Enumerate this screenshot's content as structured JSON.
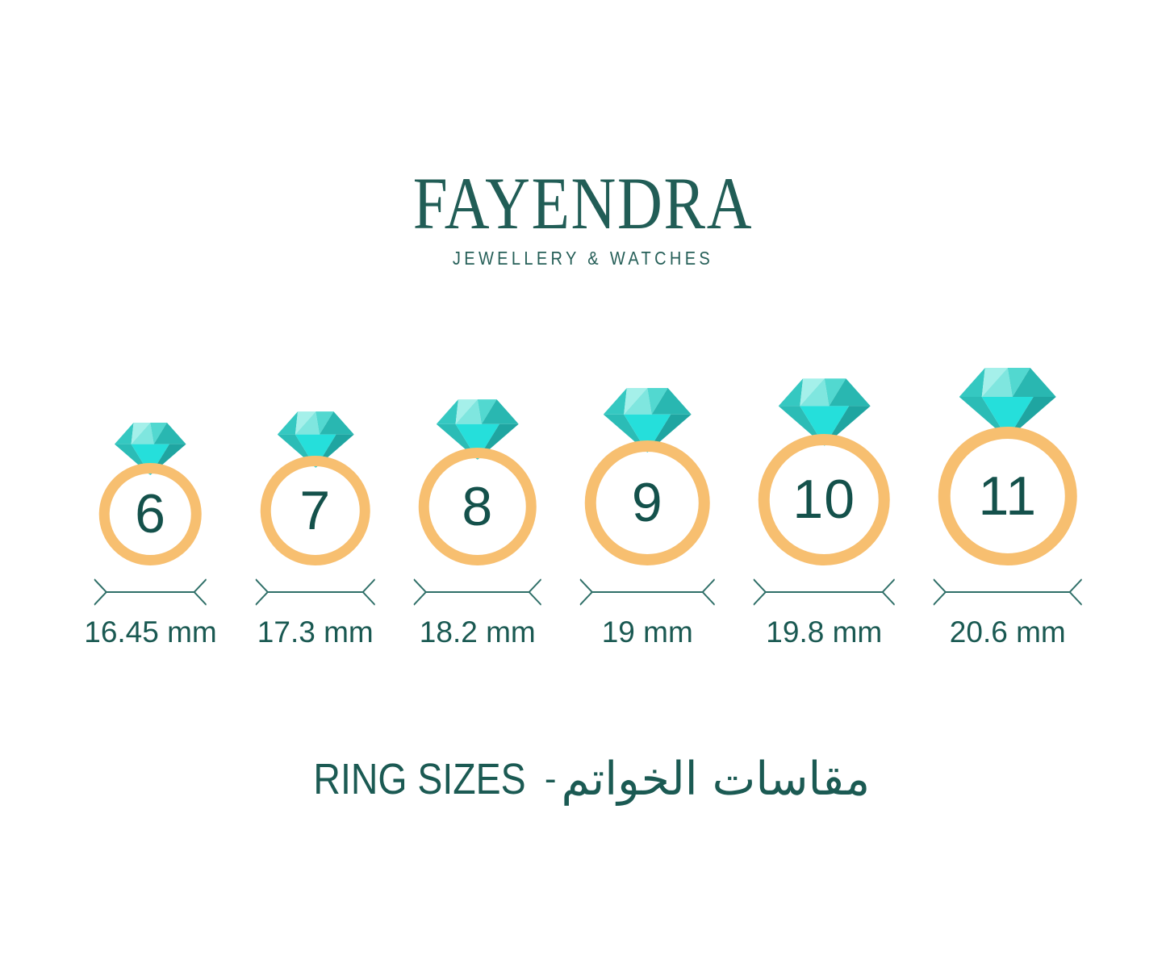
{
  "brand": {
    "name": "FAYENDRA",
    "tagline": "JEWELLERY & WATCHES"
  },
  "rings": [
    {
      "size": "6",
      "diameter_mm": 16.45,
      "diameter_label": "16.45 mm"
    },
    {
      "size": "7",
      "diameter_mm": 17.3,
      "diameter_label": "17.3 mm"
    },
    {
      "size": "8",
      "diameter_mm": 18.2,
      "diameter_label": "18.2 mm"
    },
    {
      "size": "9",
      "diameter_mm": 19,
      "diameter_label": "19 mm"
    },
    {
      "size": "10",
      "diameter_mm": 19.8,
      "diameter_label": "19.8 mm"
    },
    {
      "size": "11",
      "diameter_mm": 20.6,
      "diameter_label": "20.6 mm"
    }
  ],
  "footer": {
    "title_en": "RING SIZES",
    "separator": "-",
    "title_ar": "مقاسات الخواتم"
  },
  "colors": {
    "teal_text": "#1A5952",
    "logo_teal": "#215D56",
    "gold_band": "#F7BF70",
    "diamond_turquoise": "#2CD9D3",
    "dimension_line": "#2F6F68"
  }
}
